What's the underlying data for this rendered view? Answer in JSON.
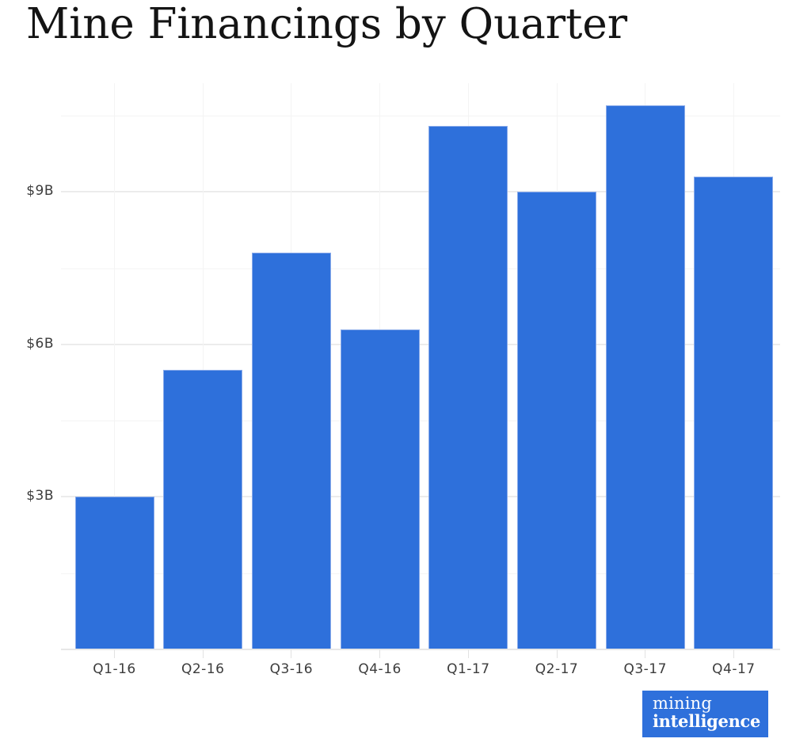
{
  "title": "Mine Financings by Quarter",
  "chart_data": {
    "type": "bar",
    "title": "Mine Financings by Quarter",
    "unit": "USD billions",
    "categories": [
      "Q1-16",
      "Q2-16",
      "Q3-16",
      "Q4-16",
      "Q1-17",
      "Q2-17",
      "Q3-17",
      "Q4-17"
    ],
    "values": [
      3.0,
      5.5,
      7.8,
      6.3,
      10.3,
      9.0,
      10.7,
      9.3
    ],
    "xlabel": "",
    "ylabel": "",
    "y_axis": {
      "ticks": [
        {
          "label": "$3B",
          "value": 3
        },
        {
          "label": "$6B",
          "value": 6
        },
        {
          "label": "$9B",
          "value": 9
        }
      ],
      "minor_gridlines": [
        1.5,
        4.5,
        7.5,
        10.5
      ],
      "range": [
        0,
        11.1
      ]
    },
    "grid": true,
    "legend": false,
    "bar_color": "#2e70db",
    "bar_edge_color": "#8aabea",
    "gridline_color": "#ececec",
    "label_color": "#3c3c3c",
    "title_color": "#141414"
  },
  "branding": {
    "line1": "mining",
    "line2": "intelligence",
    "background": "#2e70db",
    "text_color": "#ffffff"
  }
}
